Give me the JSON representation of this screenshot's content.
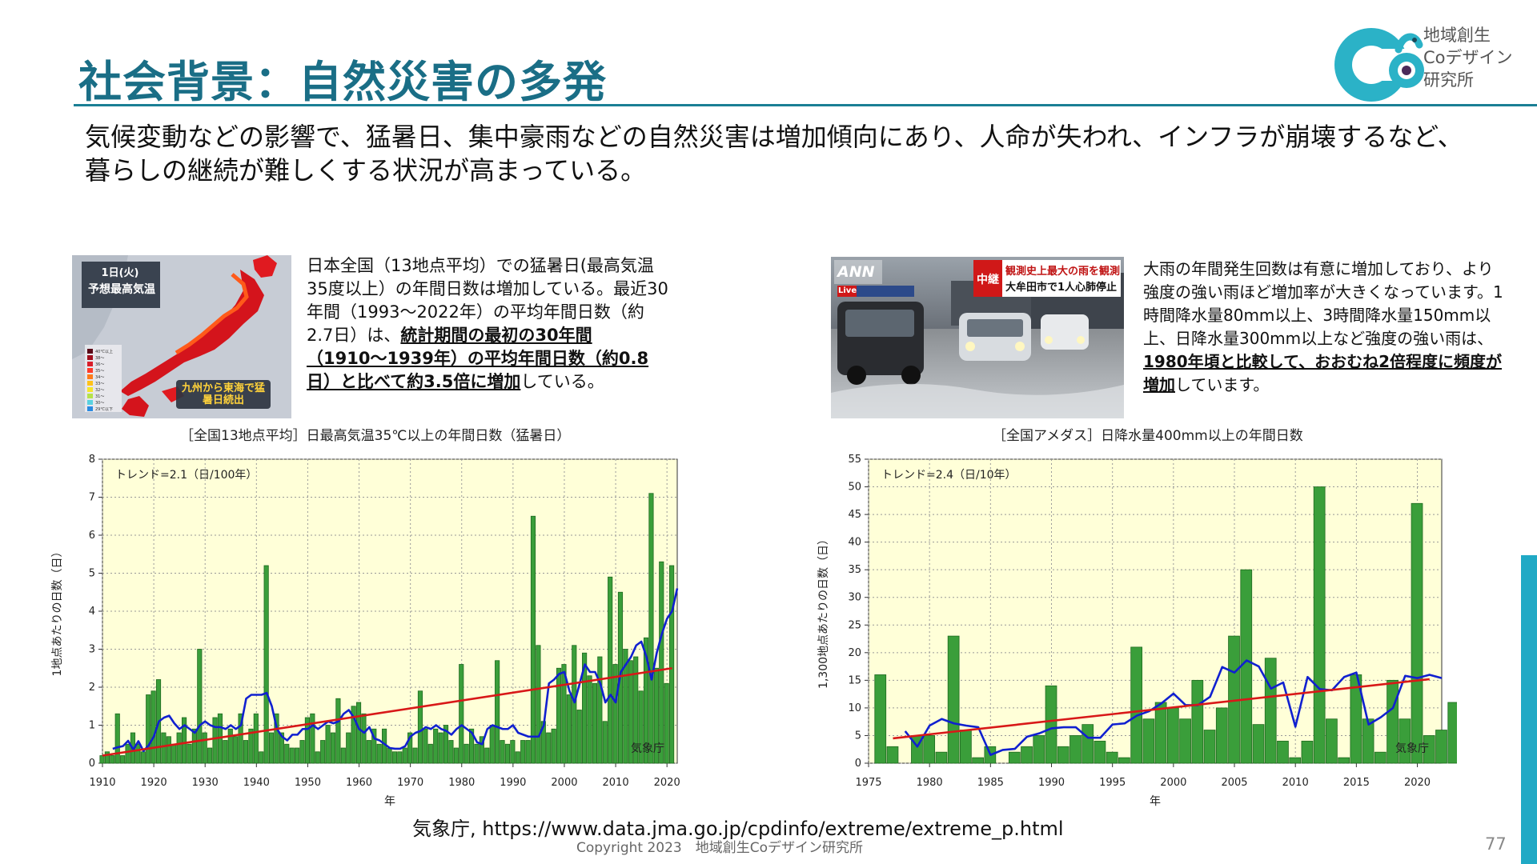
{
  "header": {
    "title": "社会背景：自然災害の多発",
    "logo_text": [
      "地域創生",
      "Coデザイン",
      "研究所"
    ]
  },
  "intro": {
    "line1": "気候変動などの影響で、猛暑日、集中豪雨などの自然災害は増加傾向にあり、人命が失われ、インフラが崩壊するなど、",
    "line2": "暮らしの継続が難しくする状況が高まっている。"
  },
  "left_photo": {
    "badge": "1日(火)",
    "heading": "予想最高気温",
    "bottom_text": "九州から東海で猛暑日続出",
    "legend_labels": [
      "40℃以上",
      "38〜",
      "36〜",
      "35〜",
      "34〜",
      "33〜",
      "32〜",
      "31〜",
      "30〜",
      "29℃以下"
    ],
    "legend_colors": [
      "#5a0a18",
      "#a0101e",
      "#d81e2a",
      "#ff3a2a",
      "#ff7a1a",
      "#ffc21a",
      "#f5e52a",
      "#b6e24a",
      "#5ad2e0",
      "#2a8ae0"
    ]
  },
  "left_desc": {
    "p1": "日本全国（13地点平均）での猛暑日(最高気温35度以上）の年間日数は増加している。最近30年間（1993〜2022年）の平均年間日数（約2.7日）は、",
    "p_bold": "統計期間の最初の30年間（1910〜1939年）の平均年間日数（約0.8日）と比べて約3.5倍に増加",
    "p2": "している。"
  },
  "right_photo": {
    "channel": "ANN",
    "live": "Live",
    "tag": "中継",
    "headline1": "観測史上最大の雨を観測",
    "headline2": "大牟田市で1人心肺停止"
  },
  "right_desc": {
    "p1": "大雨の年間発生回数は有意に増加しており、より強度の強い雨ほど増加率が大きくなっています。1時間降水量80mm以上、3時間降水量150mm以上、日降水量300mm以上など強度の強い雨は、",
    "p_bold": "1980年頃と比較して、おおむね2倍程度に頻度が増加",
    "p2": "しています。"
  },
  "chart_data": [
    {
      "type": "bar",
      "title": "［全国13地点平均］日最高気温35℃以上の年間日数（猛暑日）",
      "xlabel": "年",
      "ylabel": "1地点あたりの日数（日）",
      "annotation": "トレンド=2.1（日/100年）",
      "credit": "気象庁",
      "ylim": [
        0,
        8
      ],
      "xlim": [
        1910,
        2022
      ],
      "yticks": [
        0,
        1,
        2,
        3,
        4,
        5,
        6,
        7,
        8
      ],
      "xticks": [
        1910,
        1920,
        1930,
        1940,
        1950,
        1960,
        1970,
        1980,
        1990,
        2000,
        2010,
        2020
      ],
      "grid": true,
      "bar_color": "#3a9e3a",
      "x_start": 1910,
      "values": [
        0.2,
        0.3,
        0.2,
        1.3,
        0.2,
        0.5,
        0.8,
        0.5,
        0.3,
        1.8,
        1.9,
        2.2,
        0.8,
        0.7,
        0.5,
        0.8,
        1.2,
        0.5,
        0.9,
        3.0,
        0.8,
        0.4,
        1.2,
        1.3,
        0.6,
        0.9,
        0.7,
        1.3,
        0.6,
        0.9,
        1.3,
        0.3,
        5.2,
        0.8,
        1.3,
        0.8,
        0.5,
        0.4,
        0.4,
        0.6,
        1.2,
        1.3,
        0.3,
        0.6,
        1.0,
        0.8,
        1.7,
        0.4,
        0.8,
        1.5,
        1.6,
        1.3,
        0.6,
        0.9,
        0.5,
        0.9,
        0.4,
        0.3,
        0.3,
        0.4,
        0.8,
        0.4,
        1.9,
        0.9,
        0.5,
        0.9,
        0.8,
        1.0,
        0.6,
        0.4,
        2.6,
        0.5,
        0.9,
        0.5,
        0.7,
        0.4,
        1.0,
        2.7,
        0.6,
        0.5,
        0.6,
        0.3,
        0.6,
        0.6,
        6.5,
        3.1,
        1.1,
        0.8,
        0.9,
        2.5,
        2.6,
        1.8,
        3.1,
        1.4,
        2.9,
        2.3,
        2.1,
        2.8,
        1.1,
        4.9,
        2.6,
        4.5,
        3.0,
        2.7,
        2.8,
        1.9,
        3.3,
        7.1,
        2.5,
        5.3,
        2.1,
        5.2
      ],
      "moving_average_start": 1912,
      "moving_average": [
        0.38,
        0.42,
        0.45,
        0.59,
        0.36,
        0.58,
        0.32,
        0.47,
        0.7,
        1.1,
        1.2,
        1.25,
        1.05,
        0.9,
        1.0,
        0.9,
        0.8,
        1.0,
        1.1,
        1.0,
        0.95,
        0.95,
        0.9,
        1.0,
        0.9,
        1.0,
        1.7,
        1.8,
        1.8,
        1.8,
        1.85,
        1.5,
        0.9,
        0.7,
        0.6,
        0.75,
        0.75,
        0.9,
        0.9,
        1.0,
        0.9,
        1.0,
        1.1,
        1.05,
        1.1,
        1.3,
        1.4,
        1.2,
        0.9,
        0.8,
        0.95,
        0.65,
        0.6,
        0.5,
        0.4,
        0.38,
        0.38,
        0.45,
        0.7,
        0.8,
        0.85,
        0.95,
        0.9,
        1.0,
        0.9,
        0.85,
        0.75,
        0.9,
        1.0,
        0.9,
        0.8,
        0.55,
        0.5,
        0.9,
        1.0,
        0.95,
        0.9,
        0.9,
        1.0,
        0.8,
        0.75,
        0.7,
        0.7,
        0.7,
        1.0,
        2.1,
        2.2,
        2.35,
        2.4,
        1.9,
        1.6,
        2.1,
        2.6,
        2.4,
        2.4,
        2.1,
        1.6,
        1.8,
        1.6,
        2.4,
        2.6,
        2.8,
        3.1,
        3.2,
        2.8,
        2.2,
        2.9,
        3.4,
        3.8,
        4.0,
        4.6
      ],
      "trend": {
        "from": [
          1910,
          0.2
        ],
        "to": [
          2021,
          2.5
        ]
      }
    },
    {
      "type": "bar",
      "title": "［全国アメダス］日降水量400mm以上の年間日数",
      "xlabel": "年",
      "ylabel": "1,300地点あたりの日数（日）",
      "annotation": "トレンド=2.4（日/10年）",
      "credit": "気象庁",
      "ylim": [
        0,
        55
      ],
      "xlim": [
        1975,
        2022
      ],
      "yticks": [
        0,
        5,
        10,
        15,
        20,
        25,
        30,
        35,
        40,
        45,
        50,
        55
      ],
      "xticks": [
        1975,
        1980,
        1985,
        1990,
        1995,
        2000,
        2005,
        2010,
        2015,
        2020
      ],
      "grid": true,
      "bar_color": "#3a9e3a",
      "x_start": 1976,
      "values": [
        16,
        3,
        0,
        5,
        5,
        2,
        23,
        6,
        1,
        3,
        0,
        2,
        3,
        5,
        14,
        3,
        5,
        7,
        4,
        2,
        1,
        21,
        8,
        11,
        10,
        8,
        15,
        6,
        10,
        23,
        35,
        7,
        19,
        4,
        1,
        4,
        50,
        8,
        1,
        16,
        8,
        2,
        15,
        8,
        47,
        5,
        6,
        11
      ],
      "moving_average_start": 1978,
      "moving_average": [
        5.8,
        3.0,
        6.8,
        8.0,
        7.2,
        6.8,
        6.5,
        1.5,
        2.4,
        2.6,
        4.8,
        5.4,
        6.3,
        6.5,
        6.5,
        4.6,
        4.6,
        7.0,
        7.2,
        8.6,
        9.4,
        10.8,
        12.6,
        10.5,
        10.5,
        12.0,
        17.4,
        16.4,
        18.6,
        17.5,
        13.5,
        14.6,
        6.6,
        15.6,
        13.4,
        13.2,
        15.6,
        16.4,
        7.0,
        8.3,
        10.0,
        15.8,
        15.4,
        16.0,
        15.4
      ],
      "trend": {
        "from": [
          1977,
          4.5
        ],
        "to": [
          2021,
          15.2
        ]
      }
    }
  ],
  "source": "気象庁, https://www.data.jma.go.jp/cpdinfo/extreme/extreme_p.html",
  "copyright": "Copyright 2023　地域創生Coデザイン研究所",
  "page_number": "77"
}
